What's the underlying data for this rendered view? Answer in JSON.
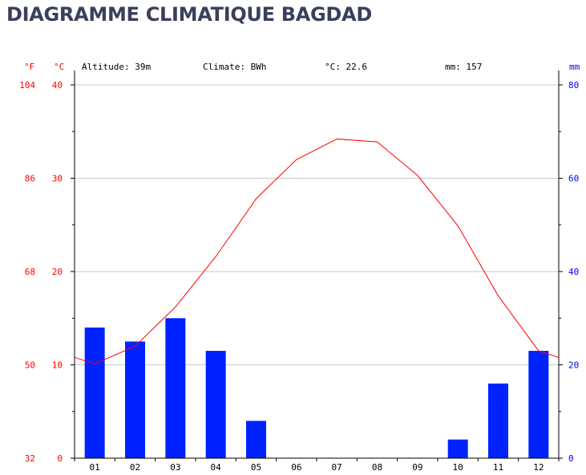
{
  "title": "DIAGRAMME CLIMATIQUE BAGDAD",
  "header": {
    "altitude": "Altitude: 39m",
    "climate": "Climate: BWh",
    "mean_temp": "°C: 22.6",
    "precip": "mm: 157"
  },
  "axis_units": {
    "fahrenheit": "°F",
    "celsius": "°C",
    "mm": "mm"
  },
  "colors": {
    "temperature": "#ff0000",
    "precipitation": "#0022ff",
    "grid": "#c8c8c8"
  },
  "chart_data": {
    "type": "bar",
    "categories": [
      "01",
      "02",
      "03",
      "04",
      "05",
      "06",
      "07",
      "08",
      "09",
      "10",
      "11",
      "12"
    ],
    "series": [
      {
        "type": "bar",
        "axis": "mm",
        "values": [
          28,
          25,
          30,
          23,
          8,
          0,
          0,
          0,
          0,
          4,
          16,
          23
        ]
      },
      {
        "type": "line",
        "axis": "°C",
        "values": [
          10.1,
          12.0,
          16.2,
          21.6,
          27.8,
          32.0,
          34.2,
          33.9,
          30.3,
          24.9,
          17.4,
          11.5
        ]
      }
    ],
    "celsius_ticks": [
      0,
      10,
      20,
      30,
      40
    ],
    "fahrenheit_ticks": [
      32,
      50,
      68,
      86,
      104
    ],
    "mm_ticks": [
      0,
      20,
      40,
      60,
      80
    ],
    "ylim_celsius": [
      0,
      40
    ],
    "ylim_mm": [
      0,
      80
    ],
    "grid": true
  }
}
